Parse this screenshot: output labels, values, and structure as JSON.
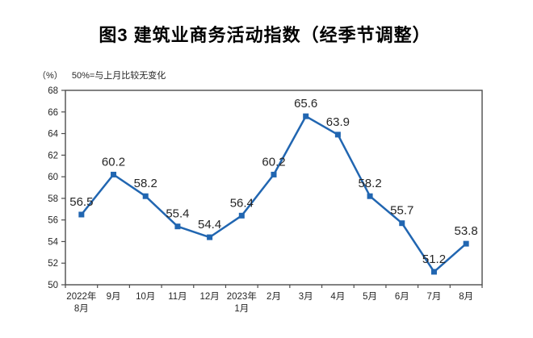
{
  "chart_data": {
    "type": "line",
    "title": "图3 建筑业商务活动指数（经季节调整）",
    "unit": "（%）",
    "note": "50%=与上月比较无变化",
    "categories": [
      "2022年\n8月",
      "9月",
      "10月",
      "11月",
      "12月",
      "2023年\n1月",
      "2月",
      "3月",
      "4月",
      "5月",
      "6月",
      "7月",
      "8月"
    ],
    "values": [
      56.5,
      60.2,
      58.2,
      55.4,
      54.4,
      56.4,
      60.2,
      65.6,
      63.9,
      58.2,
      55.7,
      51.2,
      53.8
    ],
    "ylim": [
      50,
      68
    ],
    "ytick_step": 2,
    "grid": false,
    "legend": "none",
    "marker": "square",
    "colors": {
      "line": "#2166b1",
      "marker": "#2166b1",
      "frame": "#4d4d4d",
      "axis_text": "#262626",
      "data_label": "#262626",
      "title_text": "#000000"
    }
  }
}
